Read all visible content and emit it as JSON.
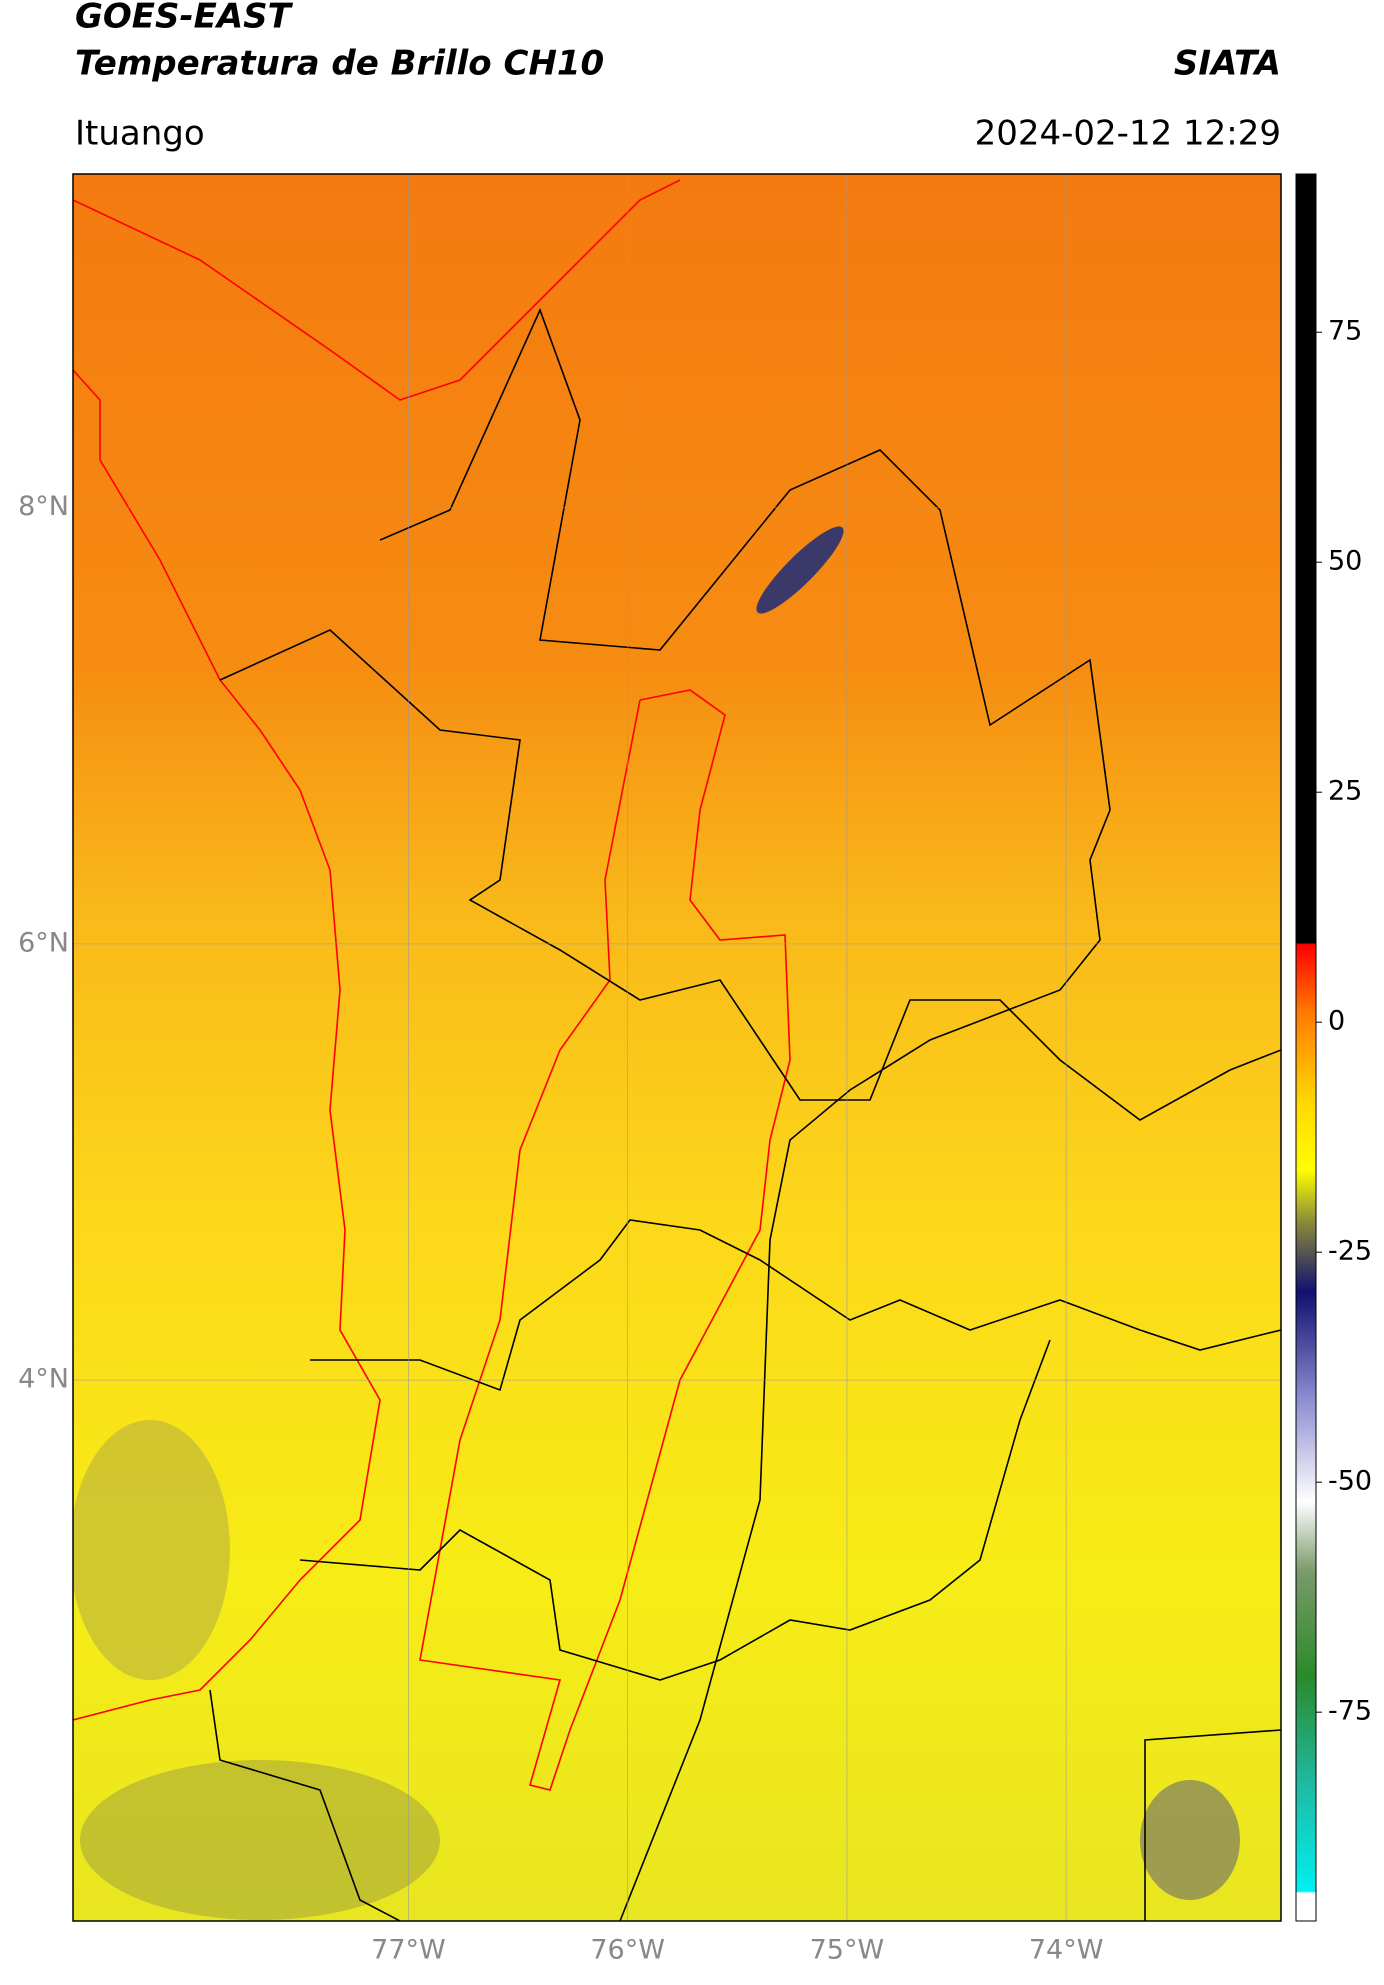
{
  "header": {
    "title_line1": "GOES-EAST",
    "title_line2": "Temperatura de Brillo CH10",
    "source": "SIATA",
    "location": "Ituango",
    "datetime": "2024-02-12 12:29"
  },
  "map": {
    "xlim": [
      -78.53,
      -73.02
    ],
    "ylim": [
      1.52,
      9.53
    ],
    "xticks": [
      {
        "value": -77,
        "label": "77°W"
      },
      {
        "value": -76,
        "label": "76°W"
      },
      {
        "value": -75,
        "label": "75°W"
      },
      {
        "value": -74,
        "label": "74°W"
      }
    ],
    "yticks": [
      {
        "value": 8,
        "label": "8°N"
      },
      {
        "value": 6,
        "label": "6°N"
      },
      {
        "value": 4,
        "label": "4°N"
      }
    ],
    "grid": true
  },
  "colorbar": {
    "clim": [
      -97.7,
      92.2
    ],
    "ticks": [
      75,
      50,
      25,
      0,
      -25,
      -50,
      -75
    ]
  }
}
